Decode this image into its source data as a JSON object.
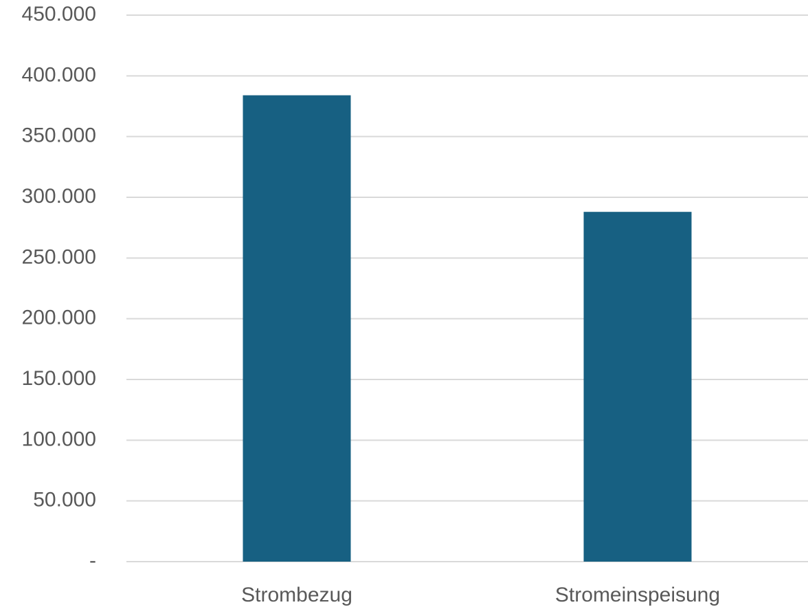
{
  "chart_data": {
    "type": "bar",
    "title": "",
    "xlabel": "",
    "ylabel": "",
    "categories": [
      "Strombezug",
      "Stromeinspeisung"
    ],
    "values": [
      384000,
      288000
    ],
    "ylim": [
      0,
      450000
    ],
    "y_ticks": [
      0,
      50000,
      100000,
      150000,
      200000,
      250000,
      300000,
      350000,
      400000,
      450000
    ],
    "y_tick_labels": [
      "-",
      "50.000",
      "100.000",
      "150.000",
      "200.000",
      "250.000",
      "300.000",
      "350.000",
      "400.000",
      "450.000"
    ],
    "grid": true,
    "legend": "none",
    "colors": {
      "bar": "#176082",
      "grid": "#d9d9d9",
      "text": "#595959"
    }
  }
}
